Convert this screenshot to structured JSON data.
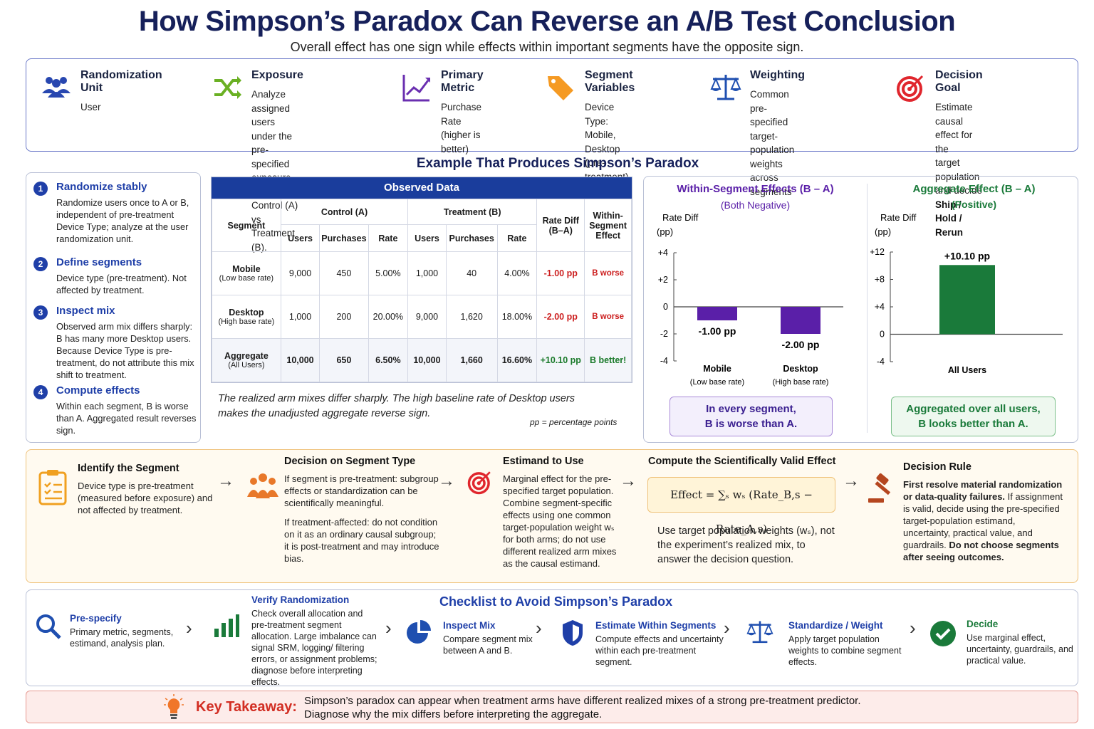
{
  "title": "How Simpson’s Paradox Can Reverse an A/B Test Conclusion",
  "subtitle": "Overall effect has one sign while effects within important segments have the opposite sign.",
  "setup": [
    {
      "heading": "Randomization Unit",
      "lines": [
        "User"
      ],
      "icon": "users-icon"
    },
    {
      "heading": "Exposure",
      "lines": [
        "Analyze assigned users",
        "under the pre-specified",
        "exposure rule for Control (A)",
        "vs Treatment (B)."
      ],
      "icon": "shuffle-icon"
    },
    {
      "heading": "Primary Metric",
      "lines": [
        "Purchase Rate",
        "(higher is better)"
      ],
      "icon": "trend-chart-icon"
    },
    {
      "heading": "Segment Variables",
      "lines": [
        "Device Type:",
        "Mobile, Desktop",
        "(pre-treatment)"
      ],
      "icon": "tag-icon"
    },
    {
      "heading": "Weighting",
      "lines": [
        "Common pre-specified",
        "target-population weights",
        "across segments"
      ],
      "icon": "scale-icon"
    },
    {
      "heading": "Decision Goal",
      "lines": [
        "Estimate causal effect for the",
        "target population and decide"
      ],
      "bold_line": "Ship / Hold / Rerun",
      "icon": "target-icon"
    }
  ],
  "example_title": "Example That Produces Simpson’s Paradox",
  "steps": [
    {
      "num": "1",
      "heading": "Randomize stably",
      "text": "Randomize users once to A or B, independent of pre-treatment Device Type; analyze at the user randomization unit."
    },
    {
      "num": "2",
      "heading": "Define segments",
      "text": "Device type (pre-treatment). Not affected by treatment."
    },
    {
      "num": "3",
      "heading": "Inspect mix",
      "text": "Observed arm mix differs sharply: B has many more Desktop users. Because Device Type is pre-treatment, do not attribute this mix shift to treatment."
    },
    {
      "num": "4",
      "heading": "Compute effects",
      "text": "Within each segment, B is worse than A. Aggregated result reverses sign."
    }
  ],
  "table": {
    "title": "Observed Data",
    "h_segment": "Segment",
    "h_control": "Control (A)",
    "h_treatment": "Treatment (B)",
    "h_diff": "Rate Diff (B–A)",
    "h_within": "Within-Segment Effect",
    "h_users": "Users",
    "h_purchases": "Purchases",
    "h_rate": "Rate",
    "rows": [
      {
        "segment": "Mobile",
        "sub": "(Low base rate)",
        "a_users": "9,000",
        "a_purch": "450",
        "a_rate": "5.00%",
        "b_users": "1,000",
        "b_purch": "40",
        "b_rate": "4.00%",
        "diff": "-1.00 pp",
        "effect": "B worse"
      },
      {
        "segment": "Desktop",
        "sub": "(High base rate)",
        "a_users": "1,000",
        "a_purch": "200",
        "a_rate": "20.00%",
        "b_users": "9,000",
        "b_purch": "1,620",
        "b_rate": "18.00%",
        "diff": "-2.00 pp",
        "effect": "B worse"
      },
      {
        "segment": "Aggregate",
        "sub": "(All Users)",
        "a_users": "10,000",
        "a_purch": "650",
        "a_rate": "6.50%",
        "b_users": "10,000",
        "b_purch": "1,660",
        "b_rate": "16.60%",
        "diff": "+10.10 pp",
        "effect": "B better!"
      }
    ],
    "note": "The realized arm mixes differ sharply. The high baseline rate of Desktop users makes the unadjusted aggregate reverse sign.",
    "pp_note": "pp = percentage points"
  },
  "chart_data": [
    {
      "type": "bar",
      "title": "Within-Segment Effects (B – A)",
      "subtitle": "(Both Negative)",
      "ylabel": "Rate Diff (pp)",
      "ylim": [
        -4,
        4
      ],
      "yticks": [
        "+4",
        "+2",
        "0",
        "-2",
        "-4"
      ],
      "categories": [
        "Mobile",
        "Desktop"
      ],
      "category_subs": [
        "(Low base rate)",
        "(High base rate)"
      ],
      "values": [
        -1.0,
        -2.0
      ],
      "data_labels": [
        "-1.00 pp",
        "-2.00 pp"
      ],
      "color": "#5a1fa8",
      "callout": [
        "In every segment,",
        "B is worse than A."
      ]
    },
    {
      "type": "bar",
      "title": "Aggregate Effect (B – A)",
      "subtitle": "(Positive)",
      "ylabel": "Rate Diff (pp)",
      "ylim": [
        -4,
        12
      ],
      "yticks": [
        "+12",
        "+8",
        "+4",
        "0",
        "-4"
      ],
      "categories": [
        "All Users"
      ],
      "values": [
        10.1
      ],
      "data_labels": [
        "+10.10 pp"
      ],
      "color": "#1a7a3a",
      "callout": [
        "Aggregated over all users,",
        "B looks better than A."
      ]
    }
  ],
  "flow": {
    "identify": {
      "heading": "Identify the Segment",
      "text": "Device type is pre-treatment (measured before exposure) and not affected by treatment."
    },
    "decision": {
      "heading": "Decision on Segment Type",
      "text1": "If segment is pre-treatment: subgroup effects or standardization can be scientifically meaningful.",
      "text2": "If treatment-affected: do not condition on it as an ordinary causal subgroup; it is post-treatment and may introduce bias."
    },
    "estimand": {
      "heading": "Estimand to Use",
      "text": "Marginal effect for the pre-specified target population. Combine segment-specific effects using one common target-population weight wₛ for both arms; do not use different realized arm mixes as the causal estimand."
    },
    "compute": {
      "heading": "Compute the Scientifically Valid Effect",
      "formula": "Effect = ∑ₛ wₛ (Rate_B,s − Rate_A,s)",
      "text": "Use target population weights (wₛ), not the experiment’s realized mix, to answer the decision question."
    },
    "rule": {
      "heading": "Decision Rule",
      "bold1": "First resolve material randomization or data-quality failures.",
      "text": " If assignment is valid, decide using the pre-specified target-population estimand, uncertainty, practical value, and guardrails.",
      "bold2": " Do not choose segments after seeing outcomes."
    }
  },
  "checklist": {
    "title": "Checklist to Avoid Simpson’s Paradox",
    "items": [
      {
        "heading": "Pre-specify",
        "text": "Primary metric, segments, estimand, analysis plan.",
        "icon": "search-icon"
      },
      {
        "heading": "Verify Randomization",
        "text": "Check overall allocation and pre-treatment segment allocation. Large imbalance can signal SRM, logging/ filtering errors, or assignment problems; diagnose before interpreting effects.",
        "icon": "bar-chart-icon"
      },
      {
        "heading": "Inspect Mix",
        "text": "Compare segment mix between A and B.",
        "icon": "pie-chart-icon"
      },
      {
        "heading": "Estimate Within Segments",
        "text": "Compute effects and uncertainty within each pre-treatment segment.",
        "icon": "shield-icon"
      },
      {
        "heading": "Standardize / Weight",
        "text": "Apply target population weights to combine segment effects.",
        "icon": "scale-icon"
      },
      {
        "heading": "Decide",
        "text": "Use marginal effect, uncertainty, guardrails, and practical value.",
        "icon": "check-circle-icon"
      }
    ]
  },
  "takeaway": {
    "label": "Key Takeaway:",
    "line1": "Simpson’s paradox can appear when treatment arms have different realized mixes of a strong pre-treatment predictor.",
    "line2": "Diagnose why the mix differs before interpreting the aggregate."
  }
}
